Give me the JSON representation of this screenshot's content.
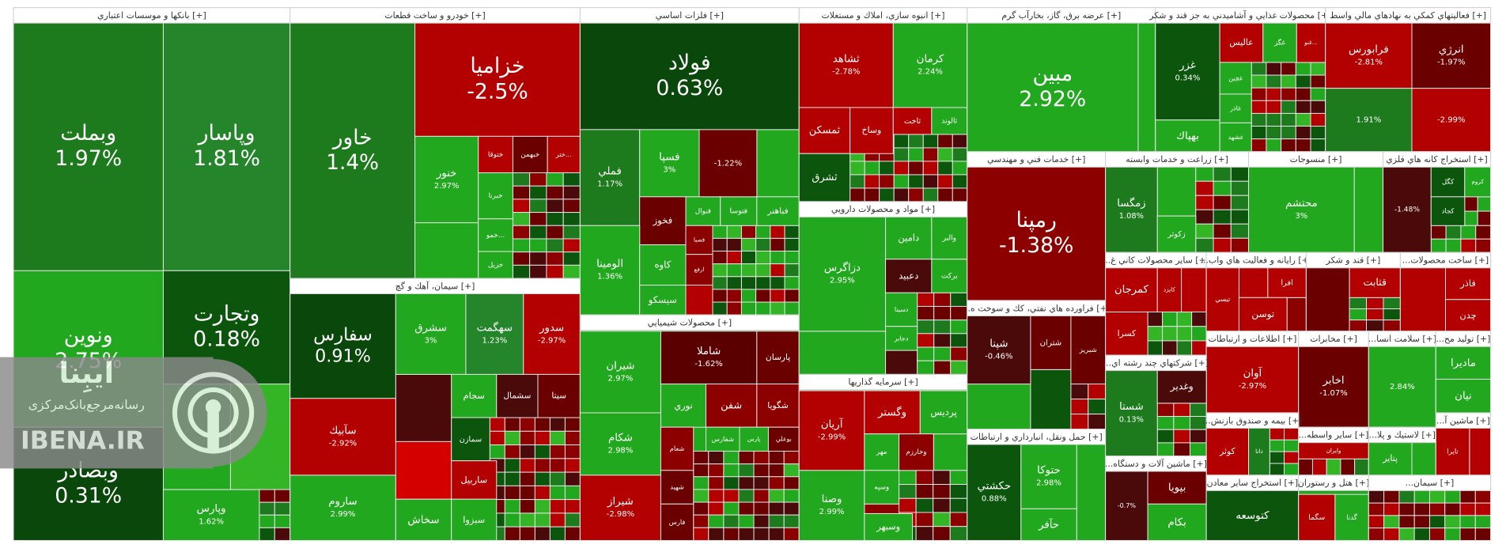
{
  "chart_data": {
    "type": "treemap",
    "watermark": {
      "brand": "ایبِنا",
      "tagline": "رسانه‌مرجع‌بانک‌مرکزی",
      "site": "IBENA.IR"
    },
    "groups": [
      {
        "title": "بانكها و موسسات اعتباري [+]",
        "tiles": [
          {
            "name": "وبملت",
            "value": 1.97,
            "value_label": "1.97%",
            "color": "#1d7a1d"
          },
          {
            "name": "وپاسار",
            "value": 1.81,
            "value_label": "1.81%",
            "color": "#25852a"
          },
          {
            "name": "ونوين",
            "value": 2.75,
            "value_label": "2.75%",
            "color": "#22a81e"
          },
          {
            "name": "وتجارت",
            "value": 0.18,
            "value_label": "0.18%",
            "color": "#0c550c"
          },
          {
            "name": "وبصادر",
            "value": 0.31,
            "value_label": "0.31%",
            "color": "#0a470a"
          },
          {
            "name": "وپارس",
            "value": 1.62,
            "value_label": "1.62%",
            "color": "#22a81e"
          }
        ]
      },
      {
        "title": "خودرو و ساخت قطعات [+]",
        "tiles": [
          {
            "name": "خاور",
            "value": 1.4,
            "value_label": "1.4%",
            "color": "#1d7a1d"
          },
          {
            "name": "خزامیا",
            "value": -2.5,
            "value_label": "-2.5%",
            "color": "#b30000"
          },
          {
            "name": "خنور",
            "value": 2.97,
            "value_label": "2.97%",
            "color": "#22a81e"
          },
          {
            "name": "ختوقا",
            "color": "#b30000"
          },
          {
            "name": "خبهمن",
            "color": "#6b0000"
          },
          {
            "name": "ختر...",
            "color": "#b30000"
          },
          {
            "name": "خبرنا",
            "color": "#22a81e"
          },
          {
            "name": "خمو...",
            "color": "#22a81e"
          },
          {
            "name": "خزيل",
            "color": "#22a81e"
          }
        ]
      },
      {
        "title": "سيمان، آهك و گچ [+]",
        "tiles": [
          {
            "name": "سفارس",
            "value": 0.91,
            "value_label": "0.91%",
            "color": "#0a470a"
          },
          {
            "name": "سآبيك",
            "value": -2.92,
            "value_label": "-2.92%",
            "color": "#b30000"
          },
          {
            "name": "ساروم",
            "value": 2.99,
            "value_label": "2.99%",
            "color": "#22a81e"
          },
          {
            "name": "سشرق",
            "value": 3,
            "value_label": "3%",
            "color": "#22a81e"
          },
          {
            "name": "سهگمت",
            "value": 1.23,
            "value_label": "1.23%",
            "color": "#25852a"
          },
          {
            "name": "سدور",
            "value": -2.97,
            "value_label": "-2.97%",
            "color": "#b30000"
          },
          {
            "name": "سجام",
            "color": "#22a81e"
          },
          {
            "name": "سشمال",
            "color": "#4a0a0a"
          },
          {
            "name": "سيتا",
            "color": "#6b0000"
          },
          {
            "name": "سمازن",
            "color": "#0c550c"
          },
          {
            "name": "ساربيل",
            "color": "#b30000"
          },
          {
            "name": "سخاش",
            "color": "#22a81e"
          },
          {
            "name": "سبزوا",
            "color": "#22a81e"
          }
        ]
      },
      {
        "title": "فلزات اساسي [+]",
        "tiles": [
          {
            "name": "فولاد",
            "value": 0.63,
            "value_label": "0.63%",
            "color": "#0a470a"
          },
          {
            "name": "فملي",
            "value": 1.17,
            "value_label": "1.17%",
            "color": "#1d7a1d"
          },
          {
            "name": "فسپا",
            "value": 3,
            "value_label": "3%",
            "color": "#22a81e"
          },
          {
            "value": -1.22,
            "value_label": "-1.22%",
            "color": "#6b0000"
          },
          {
            "name": "فخوز",
            "color": "#6b0000"
          },
          {
            "name": "فنوال",
            "color": "#22a81e"
          },
          {
            "name": "فتوسا",
            "color": "#22a81e"
          },
          {
            "name": "فباهنر",
            "color": "#22a81e"
          },
          {
            "name": "الومينا",
            "value": 1.36,
            "value_label": "1.36%",
            "color": "#22a81e"
          },
          {
            "name": "كاوه",
            "color": "#22a81e"
          },
          {
            "name": "سيسكو",
            "color": "#22a81e"
          },
          {
            "name": "فصبا",
            "color": "#8c0000"
          },
          {
            "name": "ارفع",
            "color": "#8c0000"
          }
        ]
      },
      {
        "title": "محصولات شيميايي [+]",
        "tiles": [
          {
            "name": "شيران",
            "value": 2.97,
            "value_label": "2.97%",
            "color": "#22a81e"
          },
          {
            "name": "شاملا",
            "value": -1.62,
            "value_label": "-1.62%",
            "color": "#5a0000"
          },
          {
            "name": "پارسان",
            "color": "#6b0000"
          },
          {
            "name": "شكام",
            "value": 2.98,
            "value_label": "2.98%",
            "color": "#22a81e"
          },
          {
            "name": "شيراز",
            "value": -2.98,
            "value_label": "-2.98%",
            "color": "#b30000"
          },
          {
            "name": "نوري",
            "color": "#22a81e"
          },
          {
            "name": "شفن",
            "color": "#8c0000"
          },
          {
            "name": "شگويا",
            "color": "#8c0000"
          },
          {
            "name": "شفارس",
            "color": "#22a81e"
          },
          {
            "name": "شعام",
            "color": "#8c0000"
          },
          {
            "name": "پارس",
            "color": "#22a81e"
          },
          {
            "name": "بوعلي",
            "color": "#6b0000"
          },
          {
            "name": "شهيد",
            "color": "#6b0000"
          },
          {
            "name": "فارس",
            "color": "#6b0000"
          }
        ]
      },
      {
        "title": "انبوه سازي، املاك و مستغلات [+]",
        "tiles": [
          {
            "name": "ثشاهد",
            "value": -2.78,
            "value_label": "-2.78%",
            "color": "#b30000"
          },
          {
            "name": "كرمان",
            "value": 2.24,
            "value_label": "2.24%",
            "color": "#22a81e"
          },
          {
            "name": "ثمسكن",
            "color": "#b30000"
          },
          {
            "name": "وساخ",
            "color": "#b30000"
          },
          {
            "name": "ثاخت",
            "color": "#b30000"
          },
          {
            "name": "ثالوند",
            "color": "#22a81e"
          },
          {
            "name": "ثشرق",
            "color": "#0c550c"
          }
        ]
      },
      {
        "title": "مواد و محصولات دارويي [+]",
        "tiles": [
          {
            "name": "دزاگرس",
            "value": 2.95,
            "value_label": "2.95%",
            "color": "#22a81e"
          },
          {
            "name": "دامين",
            "color": "#22a81e"
          },
          {
            "name": "والبر",
            "color": "#22a81e"
          },
          {
            "name": "دعبيد",
            "color": "#4a0a0a"
          },
          {
            "name": "بركت",
            "color": "#22a81e"
          },
          {
            "name": "دسينا",
            "color": "#22a81e"
          },
          {
            "name": "دجابر",
            "color": "#22a81e"
          }
        ]
      },
      {
        "title": "سرمايه گذاريها [+]",
        "tiles": [
          {
            "name": "آريان",
            "value": -2.99,
            "value_label": "-2.99%",
            "color": "#b30000"
          },
          {
            "name": "وصنا",
            "value": 2.99,
            "value_label": "2.99%",
            "color": "#22a81e"
          },
          {
            "name": "وگستر",
            "color": "#b30000"
          },
          {
            "name": "پرديس",
            "color": "#22a81e"
          },
          {
            "name": "مهر",
            "color": "#22a81e"
          },
          {
            "name": "وخارزم",
            "color": "#8c0000"
          },
          {
            "name": "وسپه",
            "color": "#22a81e"
          },
          {
            "name": "وسبهر",
            "color": "#22a81e"
          }
        ]
      },
      {
        "title": "عرضه برق، گاز، بخارآب گرم [+]",
        "tiles": [
          {
            "name": "مبين",
            "value": 2.92,
            "value_label": "2.92%",
            "color": "#22a81e"
          }
        ]
      },
      {
        "title": "خدمات فني و مهندسي [+]",
        "tiles": [
          {
            "name": "رمپنا",
            "value": -1.38,
            "value_label": "-1.38%",
            "color": "#8c0000"
          }
        ]
      },
      {
        "title": "...فراورده هاي نفتي، كك و سوخت ه [+]",
        "tiles": [
          {
            "name": "شپنا",
            "value": -0.46,
            "value_label": "-0.46%",
            "color": "#4a0a0a"
          },
          {
            "name": "شتران",
            "color": "#6b0000"
          },
          {
            "name": "شبريز",
            "color": "#6b0000"
          }
        ]
      },
      {
        "title": "حمل ونقل، انبارداري و ارتباطات [+]",
        "tiles": [
          {
            "name": "حكشتي",
            "value": 0.88,
            "value_label": "0.88%",
            "color": "#0c550c"
          },
          {
            "name": "حتوكا",
            "value": 2.98,
            "value_label": "2.98%",
            "color": "#22a81e"
          },
          {
            "name": "حآفر",
            "color": "#22a81e"
          }
        ]
      },
      {
        "title": "محصولات غذايي و آشاميدني به جز قند و شكر [+]",
        "tiles": [
          {
            "name": "غزر",
            "value": 0.34,
            "value_label": "0.34%",
            "color": "#0c550c"
          },
          {
            "name": "بهپاك",
            "color": "#22a81e"
          },
          {
            "name": "عاليس",
            "color": "#b30000"
          },
          {
            "name": "غگز",
            "color": "#22a81e"
          },
          {
            "name": "غنو...",
            "color": "#b30000"
          },
          {
            "name": "غچين",
            "color": "#22a81e"
          },
          {
            "name": "غاذر",
            "color": "#22a81e"
          },
          {
            "name": "غشهد",
            "color": "#22a81e"
          }
        ]
      },
      {
        "title": "فعاليتهاي كمكي به نهادهاي مالي واسط [+]",
        "tiles": [
          {
            "name": "فرابورس",
            "value": -2.81,
            "value_label": "-2.81%",
            "color": "#b30000"
          },
          {
            "name": "انرژي",
            "value": -1.97,
            "value_label": "-1.97%",
            "color": "#6b0000"
          },
          {
            "value": 1.91,
            "value_label": "1.91%",
            "color": "#1d7a1d"
          },
          {
            "value": -2.99,
            "value_label": "-2.99%",
            "color": "#b30000"
          }
        ]
      },
      {
        "title": "زراعت و خدمات وابسته [+]",
        "tiles": [
          {
            "name": "زمگسا",
            "value": 1.08,
            "value_label": "1.08%",
            "color": "#1d7a1d"
          },
          {
            "name": "زكوثر",
            "color": "#22a81e"
          }
        ]
      },
      {
        "title": "منسوجات [+]",
        "tiles": [
          {
            "name": "محتشم",
            "value": 3,
            "value_label": "3%",
            "color": "#22a81e"
          }
        ]
      },
      {
        "title": "استخراج كانه هاي فلزي [+]",
        "tiles": [
          {
            "value": -1.48,
            "value_label": "-1.48%",
            "color": "#4a0a0a"
          },
          {
            "name": "كگل",
            "color": "#0c550c"
          },
          {
            "name": "كروم",
            "color": "#22a81e"
          },
          {
            "name": "كجاد",
            "color": "#0c550c"
          }
        ]
      },
      {
        "title": "...ساير محصولات كاني غ [+]",
        "tiles": [
          {
            "name": "كمرجان",
            "color": "#b30000"
          },
          {
            "name": "كايزد",
            "color": "#b30000"
          },
          {
            "name": "كسرا",
            "color": "#b30000"
          }
        ]
      },
      {
        "title": "...رايانه و فعاليت هاي واب [+]",
        "tiles": [
          {
            "name": "افرا",
            "color": "#b30000"
          },
          {
            "name": "تيسي",
            "color": "#b30000"
          },
          {
            "name": "توسن",
            "color": "#b30000"
          }
        ]
      },
      {
        "title": "قند و شكر [+]",
        "tiles": [
          {
            "name": "قثابت",
            "color": "#b30000"
          }
        ]
      },
      {
        "title": "...ساخت محصولات [+]",
        "tiles": [
          {
            "name": "فاذر",
            "color": "#b30000"
          },
          {
            "name": "چدن",
            "color": "#b30000"
          }
        ]
      },
      {
        "title": "اطلاعات و ارتباطات [+]",
        "tiles": [
          {
            "name": "آوان",
            "value": -2.97,
            "value_label": "-2.97%",
            "color": "#b30000"
          }
        ]
      },
      {
        "title": "مخابرات [+]",
        "tiles": [
          {
            "name": "اخابر",
            "value": -1.07,
            "value_label": "-1.07%",
            "color": "#6b0000"
          }
        ]
      },
      {
        "title": "...سلامت انسا [+]",
        "tiles": [
          {
            "value": 2.84,
            "value_label": "2.84%",
            "color": "#22a81e"
          }
        ]
      },
      {
        "title": "...توليد مح [+]",
        "tiles": [
          {
            "name": "ماديرا",
            "color": "#22a81e"
          },
          {
            "name": "نيان",
            "color": "#22a81e"
          }
        ]
      },
      {
        "title": "...شركتهاي چند رشته اي [+]",
        "tiles": [
          {
            "name": "شستا",
            "value": 0.13,
            "value_label": "0.13%",
            "color": "#1d7a1d"
          },
          {
            "name": "وغدير",
            "color": "#4a0a0a"
          }
        ]
      },
      {
        "title": "...بيمه و صندوق بازنش [+]",
        "tiles": [
          {
            "name": "كوثر",
            "color": "#b30000"
          },
          {
            "name": "دانا",
            "color": "#1d7a1d"
          }
        ]
      },
      {
        "title": "...ساير واسطه [+]",
        "tiles": [
          {
            "name": "وايران",
            "color": "#b30000"
          }
        ]
      },
      {
        "title": "...لاستيك و پلا [+]",
        "tiles": [
          {
            "name": "پتاير",
            "color": "#22a81e"
          }
        ]
      },
      {
        "title": "...ماشين آ [+]",
        "tiles": [
          {
            "name": "تايرا",
            "color": "#b30000"
          }
        ]
      },
      {
        "title": "...ماشين آلات و دستگاه [+]",
        "tiles": [
          {
            "value": -0.7,
            "value_label": "-0.7%",
            "color": "#4a0a0a"
          },
          {
            "name": "بپويا",
            "color": "#6b0000"
          },
          {
            "name": "بكام",
            "color": "#22a81e"
          }
        ]
      },
      {
        "title": "استخراج ساير معادن [+]",
        "tiles": [
          {
            "name": "كتوسعه",
            "color": "#0c550c"
          }
        ]
      },
      {
        "title": "هتل و رستوران [+]",
        "tiles": [
          {
            "name": "سگما",
            "color": "#b30000"
          },
          {
            "name": "گدنا",
            "color": "#22a81e"
          }
        ]
      },
      {
        "title": "...سيمان [+]",
        "tiles": []
      }
    ]
  }
}
